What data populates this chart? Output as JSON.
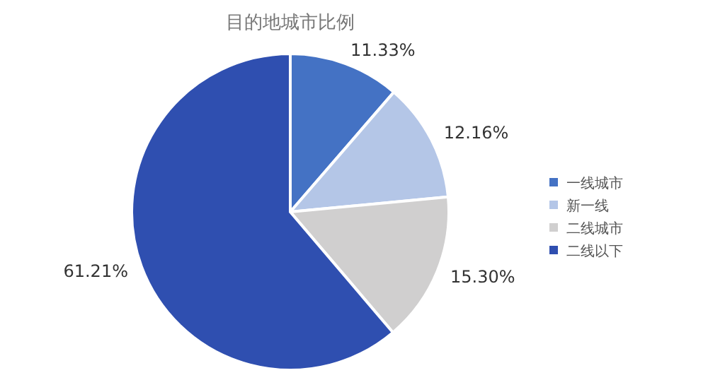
{
  "chart_data": {
    "type": "pie",
    "title": "目的地城市比例",
    "categories": [
      "一线城市",
      "新一线",
      "二线城市",
      "二线以下"
    ],
    "values": [
      11.33,
      12.16,
      15.3,
      61.21
    ],
    "colors": [
      "#4472c4",
      "#b4c6e7",
      "#d0cfcf",
      "#2f4fb0"
    ],
    "value_labels": [
      "11.33%",
      "12.16%",
      "15.30%",
      "61.21%"
    ],
    "legend": "right"
  }
}
